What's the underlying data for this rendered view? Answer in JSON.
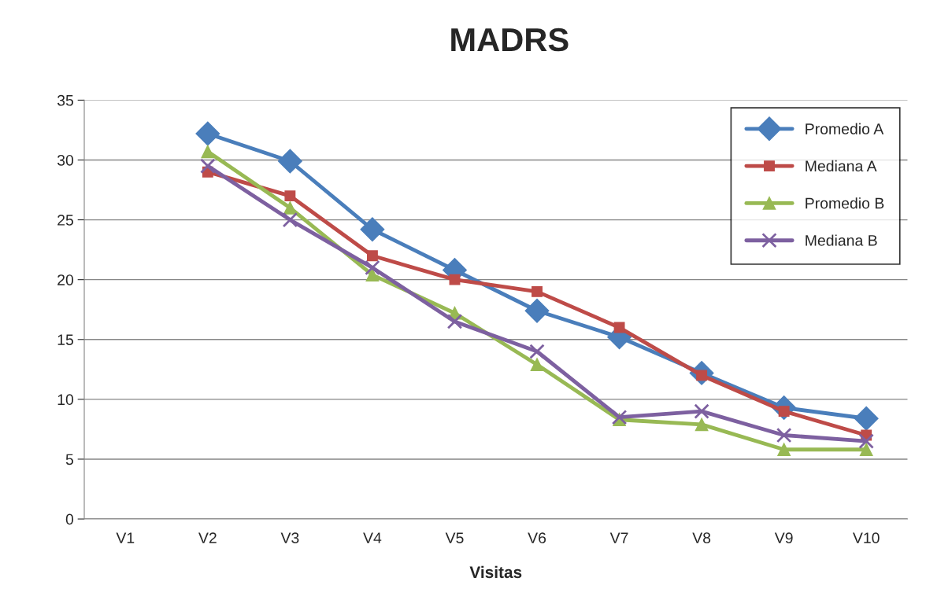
{
  "chart_data": {
    "type": "line",
    "title": "MADRS",
    "xlabel": "Visitas",
    "categories": [
      "V1",
      "V2",
      "V3",
      "V4",
      "V5",
      "V6",
      "V7",
      "V8",
      "V9",
      "V10"
    ],
    "series": [
      {
        "name": "Promedio A",
        "color": "#4a7ebb",
        "marker": "diamond",
        "values": [
          null,
          32.2,
          29.9,
          24.2,
          20.8,
          17.4,
          15.2,
          12.2,
          9.3,
          8.4
        ]
      },
      {
        "name": "Mediana A",
        "color": "#be4b48",
        "marker": "square",
        "values": [
          null,
          29,
          27,
          22,
          20,
          19,
          16,
          12,
          9,
          7
        ]
      },
      {
        "name": "Promedio B",
        "color": "#98b954",
        "marker": "triangle",
        "values": [
          null,
          30.7,
          26,
          20.4,
          17.2,
          12.9,
          8.3,
          7.9,
          5.8,
          5.8
        ]
      },
      {
        "name": "Mediana B",
        "color": "#7d60a0",
        "marker": "cross",
        "values": [
          null,
          29.5,
          25,
          21,
          16.5,
          14,
          8.5,
          9,
          7,
          6.5
        ]
      }
    ],
    "ylim": [
      0,
      35
    ],
    "yticks": [
      0,
      5,
      10,
      15,
      20,
      25,
      30,
      35
    ],
    "grid": "y",
    "legend": "top right",
    "line_style": "solid"
  }
}
